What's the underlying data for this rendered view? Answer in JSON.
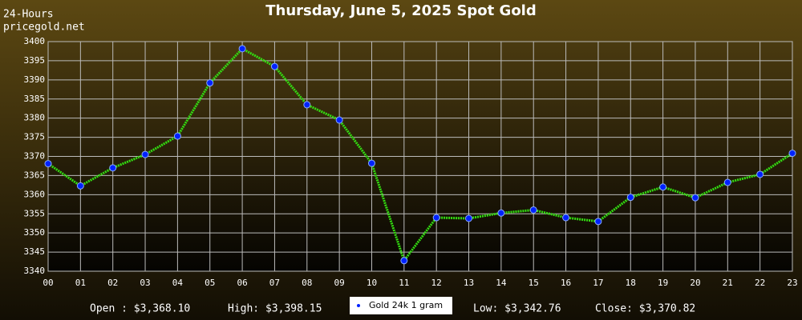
{
  "chart_data": {
    "type": "line",
    "title": "Thursday, June 5, 2025 Spot Gold",
    "subtitle_lines": [
      "24-Hours",
      "pricegold.net"
    ],
    "categories": [
      "00",
      "01",
      "02",
      "03",
      "04",
      "05",
      "06",
      "07",
      "08",
      "09",
      "10",
      "11",
      "12",
      "13",
      "14",
      "15",
      "16",
      "17",
      "18",
      "19",
      "20",
      "21",
      "22",
      "23"
    ],
    "series": [
      {
        "name": "Gold 24k 1 gram",
        "color": "#33dd11",
        "marker_color": "#0022ff",
        "values": [
          3368.1,
          3362.3,
          3367,
          3370.5,
          3375.3,
          3389.2,
          3398.15,
          3393.5,
          3383.5,
          3379.5,
          3368.2,
          3342.76,
          3354,
          3353.8,
          3355.2,
          3356,
          3354,
          3353,
          3359.3,
          3362,
          3359.2,
          3363.2,
          3365.3,
          3370.82
        ]
      }
    ],
    "ylim": [
      3340,
      3400
    ],
    "yticks": [
      3340,
      3345,
      3350,
      3355,
      3360,
      3365,
      3370,
      3375,
      3380,
      3385,
      3390,
      3395,
      3400
    ],
    "grid": true,
    "stats": [
      "Open : $3,368.10",
      "High: $3,398.15",
      "Low: $3,342.76",
      "Close: $3,370.82"
    ]
  }
}
